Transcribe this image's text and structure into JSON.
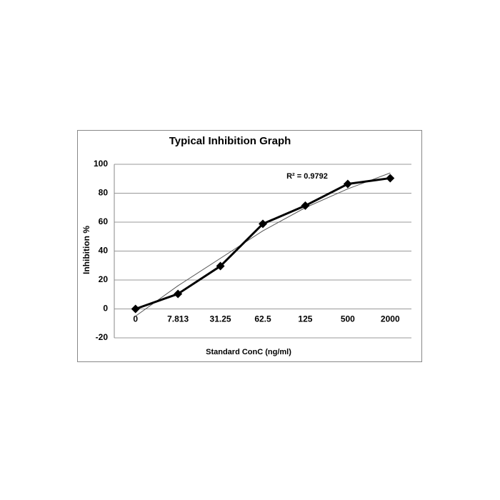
{
  "chart_data": {
    "type": "line",
    "title": "Typical Inhibition Graph",
    "x_label": "Standard  ConC (ng/ml)",
    "y_label": "Inhibition %",
    "annotation": "R² = 0.9792",
    "categories": [
      "0",
      "7.813",
      "31.25",
      "62.5",
      "125",
      "500",
      "2000"
    ],
    "series": [
      {
        "color": "#000000",
        "values": [
          0,
          10.4,
          29.6,
          58.8,
          71.4,
          86.4,
          90.4
        ]
      }
    ],
    "trendline": {
      "color": "#555555",
      "values": [
        -5,
        16,
        35,
        54,
        70,
        83,
        94
      ]
    },
    "ylim": [
      -20,
      100
    ],
    "yticks": [
      -20,
      0,
      20,
      40,
      60,
      80,
      100
    ],
    "grid": true
  }
}
